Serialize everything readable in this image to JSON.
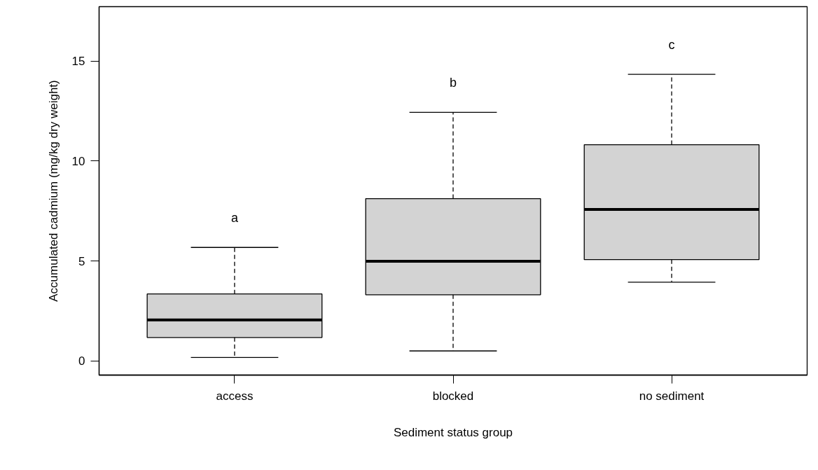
{
  "chart_data": {
    "type": "box",
    "xlabel": "Sediment status group",
    "ylabel": "Accumulated cadmium (mg/kg dry weight)",
    "categories": [
      "access",
      "blocked",
      "no sediment"
    ],
    "color": "#d3d3d3",
    "boxes": [
      {
        "low": 0.17,
        "q1": 1.17,
        "median": 2.05,
        "q3": 3.35,
        "high": 5.68
      },
      {
        "low": 0.5,
        "q1": 3.31,
        "median": 4.99,
        "q3": 8.12,
        "high": 12.44
      },
      {
        "low": 3.94,
        "q1": 5.07,
        "median": 7.58,
        "q3": 10.82,
        "high": 14.34
      }
    ],
    "ylim": [
      -0.71,
      17.73
    ],
    "yticks": [
      0,
      5,
      10,
      15
    ],
    "annotations": [
      "a",
      "b",
      "c"
    ]
  }
}
